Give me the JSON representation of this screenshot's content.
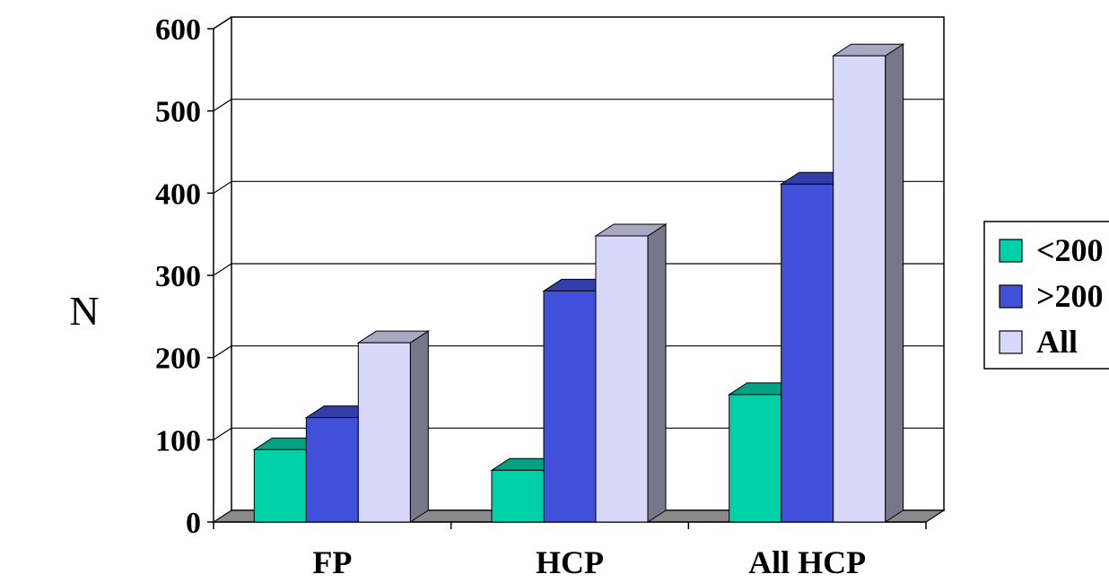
{
  "chart_data": {
    "type": "bar",
    "style": "3d-clustered-column",
    "title": "",
    "xlabel": "",
    "ylabel": "N",
    "ylim": [
      0,
      600
    ],
    "yticks": [
      0,
      100,
      200,
      300,
      400,
      500,
      600
    ],
    "categories": [
      "FP",
      "HCP",
      "All HCP"
    ],
    "series": [
      {
        "name": "<200",
        "values": [
          88,
          63,
          155
        ],
        "color": "#00d0a8"
      },
      {
        "name": ">200",
        "values": [
          127,
          281,
          411
        ],
        "color": "#4150d8"
      },
      {
        "name": "All",
        "values": [
          218,
          348,
          567
        ],
        "color": "#d8d8fa"
      }
    ],
    "grid": true,
    "legend_position": "right"
  }
}
